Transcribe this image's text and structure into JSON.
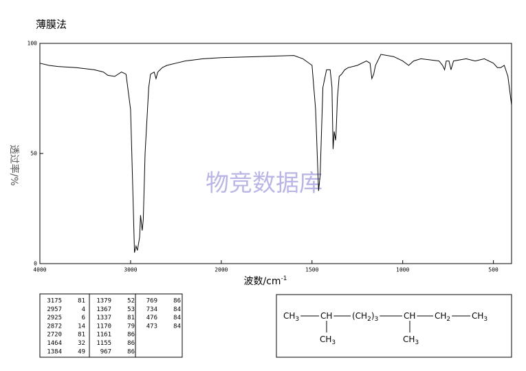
{
  "chart_data": {
    "type": "line",
    "title": "薄膜法",
    "xlabel": "波数/cm",
    "xlabel_sup": "-1",
    "ylabel": "透过率/%",
    "watermark": "物竞数据库",
    "xlim": [
      4000,
      400
    ],
    "x_scale_break": 2000,
    "x_scale_ratio": 2,
    "xticks": [
      4000,
      3000,
      2000,
      1500,
      1000,
      500
    ],
    "ylim": [
      0,
      100
    ],
    "yticks": [
      0,
      50,
      100
    ],
    "series": [
      {
        "color": "#000000",
        "x": [
          4000,
          3900,
          3800,
          3600,
          3400,
          3300,
          3250,
          3175,
          3100,
          3050,
          3000,
          2980,
          2957,
          2940,
          2925,
          2900,
          2890,
          2872,
          2860,
          2840,
          2800,
          2780,
          2740,
          2720,
          2700,
          2650,
          2600,
          2500,
          2400,
          2200,
          2000,
          1800,
          1600,
          1550,
          1500,
          1480,
          1464,
          1455,
          1440,
          1420,
          1400,
          1390,
          1384,
          1378,
          1370,
          1367,
          1360,
          1350,
          1337,
          1320,
          1300,
          1250,
          1200,
          1180,
          1170,
          1160,
          1150,
          1120,
          1050,
          1000,
          967,
          940,
          900,
          800,
          780,
          769,
          760,
          745,
          734,
          720,
          650,
          600,
          550,
          500,
          478,
          460,
          440,
          420,
          400
        ],
        "values": [
          91,
          90,
          89.5,
          89,
          88,
          87,
          85.5,
          85,
          87,
          86,
          70,
          40,
          5,
          8,
          6,
          12,
          22,
          15,
          20,
          50,
          80,
          86,
          87,
          84,
          87,
          89,
          90,
          91,
          92,
          93,
          93.5,
          94,
          94.5,
          93,
          90,
          70,
          33,
          40,
          80,
          88,
          88,
          80,
          52,
          60,
          56,
          60,
          75,
          85,
          86,
          88,
          89,
          90,
          92,
          91,
          84,
          86,
          90,
          95,
          94,
          92,
          90,
          92,
          93,
          92,
          90,
          88,
          92,
          92,
          88,
          92,
          93,
          92,
          93,
          91,
          89,
          89,
          90,
          85,
          72
        ]
      }
    ]
  },
  "peaks": [
    [
      [
        3175,
        81
      ],
      [
        2957,
        4
      ],
      [
        2925,
        6
      ],
      [
        2872,
        14
      ],
      [
        2720,
        81
      ],
      [
        1464,
        32
      ],
      [
        1384,
        49
      ]
    ],
    [
      [
        1379,
        52
      ],
      [
        1367,
        53
      ],
      [
        1337,
        81
      ],
      [
        1170,
        79
      ],
      [
        1161,
        86
      ],
      [
        1155,
        86
      ],
      [
        967,
        86
      ]
    ],
    [
      [
        769,
        86
      ],
      [
        734,
        84
      ],
      [
        476,
        84
      ],
      [
        473,
        84
      ]
    ]
  ],
  "structure": {
    "chain": [
      {
        "text": "CH",
        "sub": "3"
      },
      {
        "text": "CH"
      },
      {
        "text": "(CH",
        "sub": "2",
        "after": ")",
        "sub2": "3"
      },
      {
        "text": "CH"
      },
      {
        "text": "CH",
        "sub": "2"
      },
      {
        "text": "CH",
        "sub": "3"
      }
    ],
    "branches": [
      {
        "text": "CH",
        "sub": "3"
      },
      {
        "text": "CH",
        "sub": "3"
      }
    ]
  }
}
